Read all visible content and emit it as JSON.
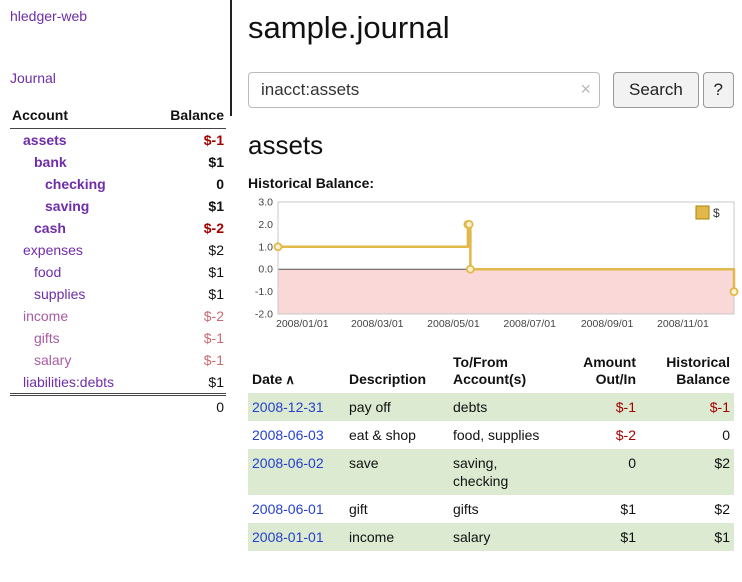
{
  "colors": {
    "purple": "#6f2da8",
    "light_purple": "#a85ca2",
    "dark_red": "#a40000",
    "light_red": "#c96b70",
    "link_blue": "#2540cc",
    "row_green": "#dbead0",
    "chart_line": "#e3b84a",
    "chart_neg_fill": "#fbd8d8"
  },
  "sidebar": {
    "app_title": "hledger-web",
    "journal_label": "Journal",
    "accounts_header": {
      "account": "Account",
      "balance": "Balance"
    },
    "accounts": [
      {
        "name": "assets",
        "indent": 1,
        "bold": true,
        "name_color": "purple",
        "balance": "$-1",
        "balance_color": "dark_red"
      },
      {
        "name": "bank",
        "indent": 2,
        "bold": true,
        "name_color": "purple",
        "balance": "$1"
      },
      {
        "name": "checking",
        "indent": 3,
        "bold": true,
        "name_color": "purple",
        "balance": "0"
      },
      {
        "name": "saving",
        "indent": 3,
        "bold": true,
        "name_color": "purple",
        "balance": "$1"
      },
      {
        "name": "cash",
        "indent": 2,
        "bold": true,
        "name_color": "purple",
        "balance": "$-2",
        "balance_color": "dark_red"
      },
      {
        "name": "expenses",
        "indent": 1,
        "bold": false,
        "name_color": "purple",
        "balance": "$2"
      },
      {
        "name": "food",
        "indent": 2,
        "bold": false,
        "name_color": "purple",
        "balance": "$1"
      },
      {
        "name": "supplies",
        "indent": 2,
        "bold": false,
        "name_color": "purple",
        "balance": "$1"
      },
      {
        "name": "income",
        "indent": 1,
        "bold": false,
        "name_color": "light_purple",
        "balance": "$-2",
        "balance_color": "light_red"
      },
      {
        "name": "gifts",
        "indent": 2,
        "bold": false,
        "name_color": "light_purple",
        "balance": "$-1",
        "balance_color": "light_red"
      },
      {
        "name": "salary",
        "indent": 2,
        "bold": false,
        "name_color": "light_purple",
        "balance": "$-1",
        "balance_color": "light_red"
      },
      {
        "name": "liabilities:debts",
        "indent": 1,
        "bold": false,
        "name_color": "purple",
        "balance": "$1"
      }
    ],
    "total": "0"
  },
  "main": {
    "title": "sample.journal",
    "search": {
      "value": "inacct:assets",
      "clear_icon": "×",
      "button_label": "Search",
      "help_label": "?"
    },
    "account_title": "assets",
    "chart_label": "Historical Balance:"
  },
  "chart_data": {
    "type": "line",
    "step": true,
    "title": "Historical Balance",
    "series": [
      {
        "name": "$",
        "points": [
          [
            "2008-01-01",
            1
          ],
          [
            "2008-06-01",
            2
          ],
          [
            "2008-06-02",
            2
          ],
          [
            "2008-06-03",
            0
          ],
          [
            "2008-12-31",
            -1
          ]
        ]
      }
    ],
    "ylim": [
      -2,
      3
    ],
    "yticks": [
      3,
      2,
      1,
      0,
      -1,
      -2
    ],
    "xticks": [
      "2008/01/01",
      "2008/03/01",
      "2008/05/01",
      "2008/07/01",
      "2008/09/01",
      "2008/11/01"
    ],
    "xrange": [
      "2008-01-01",
      "2008-12-31"
    ],
    "legend_position": "top-right",
    "negative_region_shaded": true
  },
  "register": {
    "headers": [
      {
        "label": "Date",
        "sort": "∧"
      },
      {
        "label": "Description"
      },
      {
        "label": "To/From Account(s)"
      },
      {
        "label": "Amount Out/In"
      },
      {
        "label": "Historical Balance"
      }
    ],
    "rows": [
      {
        "date": "2008-12-31",
        "description": "pay off",
        "accounts": "debts",
        "amount": "$-1",
        "amount_neg": true,
        "balance": "$-1",
        "balance_neg": true
      },
      {
        "date": "2008-06-03",
        "description": "eat & shop",
        "accounts": "food, supplies",
        "amount": "$-2",
        "amount_neg": true,
        "balance": "0",
        "balance_neg": false
      },
      {
        "date": "2008-06-02",
        "description": "save",
        "accounts": "saving, checking",
        "amount": "0",
        "amount_neg": false,
        "balance": "$2",
        "balance_neg": false
      },
      {
        "date": "2008-06-01",
        "description": "gift",
        "accounts": "gifts",
        "amount": "$1",
        "amount_neg": false,
        "balance": "$2",
        "balance_neg": false
      },
      {
        "date": "2008-01-01",
        "description": "income",
        "accounts": "salary",
        "amount": "$1",
        "amount_neg": false,
        "balance": "$1",
        "balance_neg": false
      }
    ]
  }
}
